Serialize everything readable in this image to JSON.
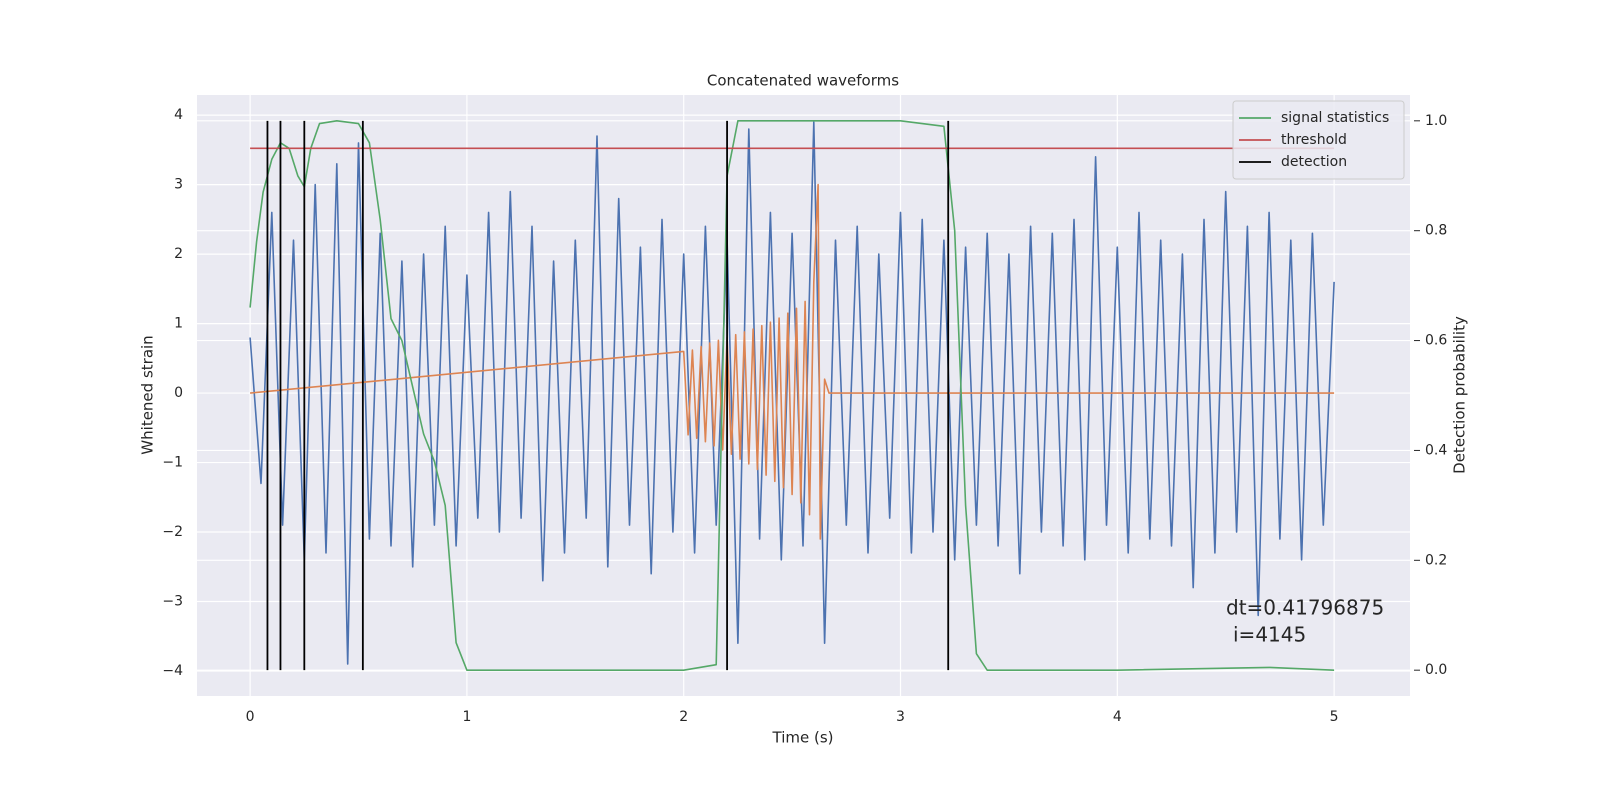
{
  "chart_data": {
    "type": "line",
    "title": "Concatenated waveforms",
    "xlabel": "Time (s)",
    "ylabel": "Whitened strain",
    "y2label": "Detection probability",
    "xlim": [
      -0.245,
      5.35
    ],
    "ylim": [
      -4.36,
      4.29
    ],
    "y2lim": [
      -0.047,
      1.047
    ],
    "xticks": [
      0,
      1,
      2,
      3,
      4,
      5
    ],
    "yticks": [
      {
        "value": -4,
        "label": "−4"
      },
      {
        "value": -3,
        "label": "−3"
      },
      {
        "value": -2,
        "label": "−2"
      },
      {
        "value": -1,
        "label": "−1"
      },
      0,
      1,
      2,
      3,
      4
    ],
    "y2ticks": [
      {
        "value": 0,
        "label": "0.0"
      },
      0.2,
      0.4,
      0.6,
      0.8,
      {
        "value": 1,
        "label": "1.0"
      }
    ],
    "grid": true,
    "legend": "upper right",
    "annotation": [
      "dt=0.41796875",
      "i=4145"
    ],
    "series": [
      {
        "color": "#4c72b0",
        "x": [
          0,
          0.05,
          0.1,
          0.15,
          0.2,
          0.25,
          0.3,
          0.35,
          0.4,
          0.45,
          0.5,
          0.55,
          0.6,
          0.65,
          0.7,
          0.75,
          0.8,
          0.85,
          0.9,
          0.95,
          1.0,
          1.05,
          1.1,
          1.15,
          1.2,
          1.25,
          1.3,
          1.35,
          1.4,
          1.45,
          1.5,
          1.55,
          1.6,
          1.65,
          1.7,
          1.75,
          1.8,
          1.85,
          1.9,
          1.95,
          2.0,
          2.05,
          2.1,
          2.15,
          2.2,
          2.25,
          2.3,
          2.35,
          2.4,
          2.45,
          2.5,
          2.55,
          2.6,
          2.65,
          2.7,
          2.75,
          2.8,
          2.85,
          2.9,
          2.95,
          3.0,
          3.05,
          3.1,
          3.15,
          3.2,
          3.25,
          3.3,
          3.35,
          3.4,
          3.45,
          3.5,
          3.55,
          3.6,
          3.65,
          3.7,
          3.75,
          3.8,
          3.85,
          3.9,
          3.95,
          4.0,
          4.05,
          4.1,
          4.15,
          4.2,
          4.25,
          4.3,
          4.35,
          4.4,
          4.45,
          4.5,
          4.55,
          4.6,
          4.65,
          4.7,
          4.75,
          4.8,
          4.85,
          4.9,
          4.95,
          5.0
        ],
        "values": [
          0.8,
          -1.3,
          2.6,
          -1.9,
          2.2,
          -2.4,
          3.0,
          -2.3,
          3.3,
          -3.9,
          3.6,
          -2.1,
          2.3,
          -2.2,
          1.9,
          -2.5,
          2.0,
          -1.9,
          2.4,
          -2.2,
          1.7,
          -1.8,
          2.6,
          -2.0,
          2.9,
          -1.8,
          2.4,
          -2.7,
          1.9,
          -2.3,
          2.2,
          -1.8,
          3.7,
          -2.5,
          2.8,
          -1.9,
          2.1,
          -2.6,
          2.5,
          -2.0,
          2.0,
          -2.3,
          2.4,
          -1.9,
          2.2,
          -3.6,
          3.8,
          -2.1,
          2.6,
          -2.4,
          2.3,
          -2.2,
          3.9,
          -3.6,
          2.2,
          -1.9,
          2.4,
          -2.3,
          2.0,
          -1.8,
          2.6,
          -2.3,
          2.5,
          -2.0,
          2.2,
          -2.4,
          2.1,
          -1.9,
          2.3,
          -2.2,
          2.0,
          -2.6,
          2.4,
          -2.0,
          2.3,
          -2.2,
          2.5,
          -2.4,
          3.4,
          -1.9,
          2.1,
          -2.3,
          2.6,
          -2.1,
          2.2,
          -2.2,
          2.0,
          -2.8,
          2.5,
          -2.3,
          2.9,
          -2.0,
          2.4,
          -3.2,
          2.6,
          -2.1,
          2.2,
          -2.4,
          2.3,
          -1.9,
          1.6
        ]
      },
      {
        "color": "#dd8452",
        "x": [
          0,
          2.0,
          2.02,
          2.04,
          2.06,
          2.08,
          2.1,
          2.12,
          2.14,
          2.16,
          2.18,
          2.2,
          2.22,
          2.24,
          2.26,
          2.28,
          2.3,
          2.32,
          2.34,
          2.36,
          2.38,
          2.4,
          2.42,
          2.44,
          2.46,
          2.48,
          2.5,
          2.52,
          2.54,
          2.56,
          2.58,
          2.6,
          2.62,
          2.63,
          2.65,
          2.67,
          5
        ],
        "values": [
          0,
          0.6,
          -0.6,
          0.62,
          -0.65,
          0.67,
          -0.7,
          0.72,
          -0.76,
          0.76,
          -0.82,
          0.8,
          -0.88,
          0.84,
          -0.95,
          0.88,
          -1.02,
          0.92,
          -1.1,
          0.97,
          -1.18,
          1.02,
          -1.27,
          1.08,
          -1.36,
          1.15,
          -1.46,
          1.22,
          -1.58,
          1.32,
          -1.75,
          1.6,
          3.0,
          -2.1,
          0.2,
          0,
          0
        ]
      },
      {
        "name": "signal statistics",
        "color": "#55a868",
        "axis": "y2",
        "x": [
          0,
          0.03,
          0.06,
          0.1,
          0.14,
          0.18,
          0.22,
          0.25,
          0.28,
          0.32,
          0.4,
          0.5,
          0.55,
          0.6,
          0.65,
          0.7,
          0.8,
          0.85,
          0.9,
          0.95,
          1.0,
          1.5,
          2.0,
          2.15,
          2.2,
          2.25,
          2.5,
          3.0,
          3.2,
          3.25,
          3.3,
          3.35,
          3.4,
          4.0,
          4.7,
          5.0
        ],
        "values": [
          0.66,
          0.78,
          0.87,
          0.93,
          0.96,
          0.95,
          0.9,
          0.88,
          0.95,
          0.995,
          1.0,
          0.995,
          0.96,
          0.82,
          0.64,
          0.6,
          0.43,
          0.38,
          0.3,
          0.05,
          0.0,
          0.0,
          0.0,
          0.01,
          0.9,
          1.0,
          1.0,
          1.0,
          0.99,
          0.8,
          0.3,
          0.03,
          0.0,
          0.0,
          0.005,
          0.0
        ]
      },
      {
        "name": "threshold",
        "color": "#c44e52",
        "axis": "y2",
        "x": [
          0,
          5
        ],
        "values": [
          0.95,
          0.95
        ]
      },
      {
        "name": "detection",
        "color": "#000000",
        "axis": "y2",
        "vertical": true,
        "ylim": [
          0,
          1
        ],
        "x": [
          0.08,
          0.14,
          0.25,
          0.52,
          2.2,
          3.22
        ]
      }
    ]
  }
}
